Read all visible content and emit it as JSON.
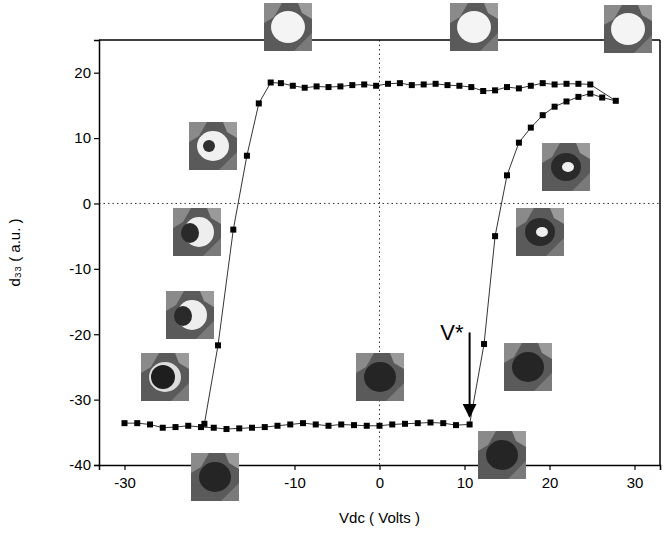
{
  "chart_data": {
    "type": "line",
    "x_label": "Vdc ( Volts )",
    "y_label": "d₃₃ ( a.u. )",
    "x": [
      -30,
      -28.5,
      -27,
      -25.5,
      -24,
      -22.5,
      -21,
      -19.5,
      -18,
      -16.5,
      -15,
      -13.5,
      -12,
      -10.5,
      -9,
      -7.5,
      -6,
      -4.5,
      -3,
      -1.5,
      0,
      1.5,
      3,
      4.5,
      6,
      7.5,
      9,
      10.6,
      12.3,
      13.6,
      15,
      16.4,
      17.8,
      19.2,
      20.6,
      22,
      23.4,
      24.8,
      26.2,
      27.8,
      24.8,
      23.4,
      22,
      20.6,
      19.2,
      17.8,
      16.4,
      15,
      13.6,
      12.2,
      10.8,
      9.4,
      8,
      6.6,
      5.2,
      3.8,
      2.4,
      1,
      -0.4,
      -1.8,
      -3.2,
      -4.6,
      -6,
      -7.4,
      -8.8,
      -10.2,
      -11.6,
      -12.8,
      -14.2,
      -15.6,
      -17.2,
      -19,
      -20.6
    ],
    "series": [
      {
        "color": "#000000",
        "marker": "square",
        "line_style": "solid",
        "values": [
          -33.6,
          -33.6,
          -33.8,
          -34.3,
          -34.2,
          -34,
          -34.2,
          -34.3,
          -34.5,
          -34.4,
          -34.3,
          -34.2,
          -34,
          -33.8,
          -33.6,
          -33.8,
          -34,
          -33.8,
          -33.9,
          -34,
          -34,
          -33.8,
          -33.7,
          -33.6,
          -33.5,
          -33.6,
          -33.9,
          -33.8,
          -21.5,
          -5,
          4.3,
          9.3,
          11.6,
          13.5,
          14.8,
          15.6,
          16.3,
          16.8,
          16.2,
          15.7,
          18.2,
          18.3,
          18.3,
          18.2,
          18.4,
          18,
          17.6,
          17.8,
          17.3,
          17.2,
          17.8,
          18,
          18.1,
          18.3,
          18.2,
          18.1,
          18.4,
          18.3,
          18,
          18.2,
          18.1,
          17.9,
          17.8,
          17.9,
          17.7,
          18,
          18.4,
          18.5,
          15.3,
          7.3,
          -4,
          -21.7,
          -33.7
        ]
      }
    ],
    "xlim": [
      -33,
      33
    ],
    "ylim": [
      -40,
      25
    ],
    "xticks": [
      -30,
      -20,
      -10,
      0,
      10,
      20,
      30
    ],
    "yticks": [
      -40,
      -30,
      -20,
      -10,
      0,
      10,
      20
    ],
    "reference_lines": {
      "x": [
        0
      ],
      "y": [
        0
      ]
    },
    "annotations": [
      {
        "text": "V*",
        "x": 10.6,
        "y": -33.8
      }
    ],
    "grid": false
  }
}
